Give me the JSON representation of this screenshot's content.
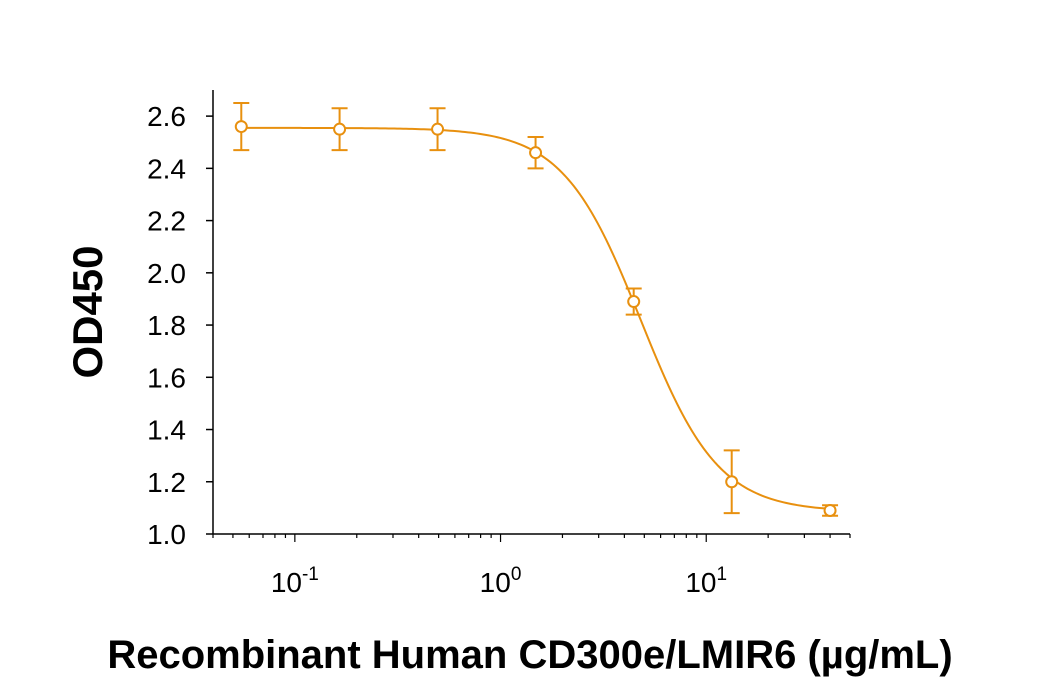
{
  "chart_data": {
    "type": "scatter",
    "xlabel": "Recombinant Human CD300e/LMIR6 (µg/mL)",
    "ylabel": "OD450",
    "xscale": "log",
    "xlim": [
      0.04,
      50
    ],
    "ylim": [
      1.0,
      2.7
    ],
    "yticks": [
      "1.0",
      "1.2",
      "1.4",
      "1.6",
      "1.8",
      "2.0",
      "2.2",
      "2.4",
      "2.6"
    ],
    "xticks": [
      {
        "value": 0.1,
        "base": "10",
        "exp": "-1"
      },
      {
        "value": 1,
        "base": "10",
        "exp": "0"
      },
      {
        "value": 10,
        "base": "10",
        "exp": "1"
      }
    ],
    "grid": false,
    "legend": "none",
    "color": "#E8900F",
    "series": [
      {
        "x": [
          0.0549,
          0.165,
          0.494,
          1.48,
          4.44,
          13.3,
          40.0
        ],
        "y": [
          2.56,
          2.55,
          2.55,
          2.46,
          1.89,
          1.2,
          1.09
        ],
        "err": [
          0.09,
          0.08,
          0.08,
          0.06,
          0.05,
          0.12,
          0.02
        ]
      }
    ],
    "fit": {
      "model": "4PL",
      "top": 2.555,
      "bottom": 1.085,
      "ec50": 4.8,
      "hill": 2.3
    }
  }
}
